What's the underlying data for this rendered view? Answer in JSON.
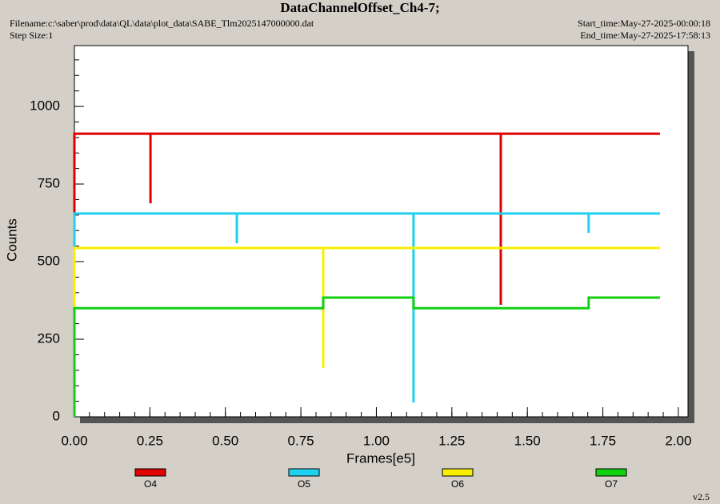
{
  "chart_data": {
    "type": "line",
    "title": "DataChannelOffset_Ch4-7;",
    "filename": "Filename:c:\\saber\\prod\\data\\QL\\data\\plot_data\\SABE_Tlm2025147000000.dat",
    "step_size": "Step Size:1",
    "start_time": "Start_time:May-27-2025-00:00:18",
    "end_time": "End_time:May-27-2025-17:58:13",
    "version": "v2.5",
    "x_label": "Frames[e5]",
    "y_label": "Counts",
    "xlim": [
      0,
      2.032
    ],
    "ylim": [
      0,
      1196
    ],
    "xticks": [
      {
        "value": 0,
        "label": "0.00"
      },
      {
        "value": 0.25,
        "label": "0.25"
      },
      {
        "value": 0.5,
        "label": "0.50"
      },
      {
        "value": 0.75,
        "label": "0.75"
      },
      {
        "value": 1,
        "label": "1.00"
      },
      {
        "value": 1.25,
        "label": "1.25"
      },
      {
        "value": 1.5,
        "label": "1.50"
      },
      {
        "value": 1.75,
        "label": "1.75"
      },
      {
        "value": 2,
        "label": "2.00"
      }
    ],
    "yticks": [
      0,
      250,
      500,
      750,
      1000
    ],
    "series": [
      {
        "name": "O4",
        "color": "#e00000",
        "x": [
          0,
          0,
          0.252,
          0.252,
          0.252,
          1.412,
          1.412,
          1.412,
          1.939
        ],
        "values": [
          0,
          912,
          912,
          688,
          912,
          912,
          361,
          912,
          912
        ]
      },
      {
        "name": "O5",
        "color": "#20d0f0",
        "x": [
          0,
          0,
          0.538,
          0.538,
          0.538,
          1.123,
          1.123,
          1.123,
          1.703,
          1.703,
          1.703,
          1.939
        ],
        "values": [
          0,
          655,
          655,
          559,
          655,
          655,
          46,
          655,
          655,
          593,
          655,
          655
        ]
      },
      {
        "name": "O6",
        "color": "#f8f000",
        "x": [
          0,
          0,
          0.824,
          0.824,
          0.824,
          1.939
        ],
        "values": [
          0,
          544,
          544,
          157,
          544,
          544
        ]
      },
      {
        "name": "O7",
        "color": "#10d010",
        "x": [
          0,
          0,
          0.824,
          0.824,
          1.123,
          1.123,
          1.703,
          1.703,
          1.939
        ],
        "values": [
          0,
          350,
          350,
          384,
          384,
          350,
          350,
          384,
          384
        ]
      }
    ]
  }
}
